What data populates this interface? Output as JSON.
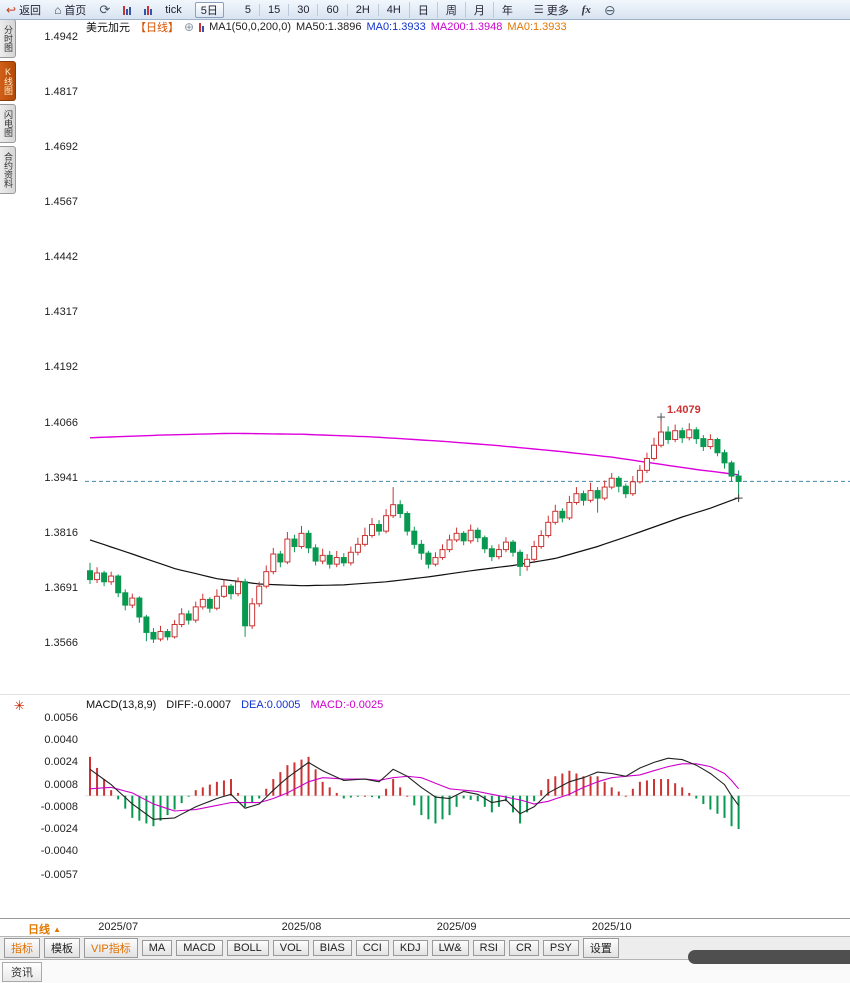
{
  "toolbar": {
    "back_label": "返回",
    "home_label": "首页",
    "tick_label": "tick",
    "five_day_label": "5日",
    "periods": [
      {
        "key": "m5",
        "label": "5"
      },
      {
        "key": "m15",
        "label": "15"
      },
      {
        "key": "m30",
        "label": "30"
      },
      {
        "key": "m60",
        "label": "60"
      },
      {
        "key": "h2",
        "label": "2H"
      },
      {
        "key": "h4",
        "label": "4H"
      },
      {
        "key": "day",
        "label": "日"
      },
      {
        "key": "week",
        "label": "周"
      },
      {
        "key": "month",
        "label": "月"
      },
      {
        "key": "year",
        "label": "年"
      }
    ],
    "more_label": "更多",
    "fx_label": "fx"
  },
  "left_tabs": [
    {
      "key": "time-chart",
      "label": "分时图",
      "active": false
    },
    {
      "key": "kline-chart",
      "label": "K线图",
      "active": true
    },
    {
      "key": "lightning-chart",
      "label": "闪电图",
      "active": false
    },
    {
      "key": "contract-info",
      "label": "合约资料",
      "active": false
    }
  ],
  "legend": {
    "symbol": "美元加元",
    "period_tag": "【日线】",
    "ma_params": "MA1(50,0,200,0)",
    "ma50": "MA50:1.3896",
    "ma0_blue": "MA0:1.3933",
    "ma200": "MA200:1.3948",
    "ma0_orange": "MA0:1.3933"
  },
  "macd_header": {
    "title": "MACD(13,8,9)",
    "diff": "DIFF:-0.0007",
    "dea": "DEA:0.0005",
    "macd": "MACD:-0.0025"
  },
  "xaxis": {
    "period_label": "日线",
    "period_arrow": "▲"
  },
  "indicator_bar": [
    {
      "key": "indicators",
      "label": "指标",
      "accent": true
    },
    {
      "key": "templates",
      "label": "模板",
      "accent": false
    },
    {
      "key": "vip-indicators",
      "label": "VIP指标",
      "accent": true
    },
    {
      "key": "ma",
      "label": "MA",
      "accent": false
    },
    {
      "key": "macd",
      "label": "MACD",
      "accent": false
    },
    {
      "key": "boll",
      "label": "BOLL",
      "accent": false
    },
    {
      "key": "vol",
      "label": "VOL",
      "accent": false
    },
    {
      "key": "bias",
      "label": "BIAS",
      "accent": false
    },
    {
      "key": "cci",
      "label": "CCI",
      "accent": false
    },
    {
      "key": "kdj",
      "label": "KDJ",
      "accent": false
    },
    {
      "key": "lwr",
      "label": "LW&",
      "accent": false
    },
    {
      "key": "rsi",
      "label": "RSI",
      "accent": false
    },
    {
      "key": "cr",
      "label": "CR",
      "accent": false
    },
    {
      "key": "psy",
      "label": "PSY",
      "accent": false
    },
    {
      "key": "settings",
      "label": "设置",
      "accent": false
    }
  ],
  "bottom_tab": "资讯",
  "colors": {
    "up": "#cc3333",
    "down": "#089950",
    "ma200": "#dd00dd",
    "ma50": "#111111",
    "dashed": "#4488aa",
    "diff_line": "#222222",
    "dea_line": "#cc00cc",
    "accent_orange": "#e07800"
  },
  "chart_data": {
    "type": "candlestick",
    "title": "美元加元 日线 USD/CAD Daily with MA(50,200) and MACD(13,8,9)",
    "main": {
      "yticks": [
        1.4942,
        1.4817,
        1.4692,
        1.4567,
        1.4442,
        1.4317,
        1.4192,
        1.4066,
        1.3941,
        1.3816,
        1.3691,
        1.3566
      ],
      "xticks": [
        {
          "index": 4,
          "label": "2025/07"
        },
        {
          "index": 30,
          "label": "2025/08"
        },
        {
          "index": 52,
          "label": "2025/09"
        },
        {
          "index": 74,
          "label": "2025/10"
        }
      ],
      "last_price": 1.3933,
      "high_annotation": {
        "index": 81,
        "price": 1.4079,
        "label": "1.4079"
      },
      "last_marker_price": 1.3895,
      "candles": [
        [
          1.373,
          1.3748,
          1.37,
          1.371
        ],
        [
          1.371,
          1.3738,
          1.3702,
          1.3725
        ],
        [
          1.3725,
          1.373,
          1.3695,
          1.3705
        ],
        [
          1.3705,
          1.3728,
          1.3698,
          1.3718
        ],
        [
          1.3718,
          1.3722,
          1.367,
          1.368
        ],
        [
          1.368,
          1.3688,
          1.364,
          1.3652
        ],
        [
          1.3652,
          1.3678,
          1.3645,
          1.3668
        ],
        [
          1.3668,
          1.3672,
          1.3612,
          1.3625
        ],
        [
          1.3625,
          1.363,
          1.357,
          1.359
        ],
        [
          1.359,
          1.36,
          1.3566,
          1.3575
        ],
        [
          1.3575,
          1.3605,
          1.357,
          1.3592
        ],
        [
          1.3592,
          1.3598,
          1.3572,
          1.358
        ],
        [
          1.358,
          1.3618,
          1.3576,
          1.3608
        ],
        [
          1.3608,
          1.3645,
          1.3602,
          1.3632
        ],
        [
          1.3632,
          1.364,
          1.3608,
          1.3618
        ],
        [
          1.3618,
          1.366,
          1.3612,
          1.3648
        ],
        [
          1.3648,
          1.3678,
          1.3642,
          1.3665
        ],
        [
          1.3665,
          1.367,
          1.3635,
          1.3645
        ],
        [
          1.3645,
          1.3688,
          1.364,
          1.3672
        ],
        [
          1.3672,
          1.371,
          1.3668,
          1.3695
        ],
        [
          1.3695,
          1.37,
          1.3665,
          1.3678
        ],
        [
          1.3678,
          1.3715,
          1.3672,
          1.3705
        ],
        [
          1.3705,
          1.3712,
          1.358,
          1.3605
        ],
        [
          1.3605,
          1.3668,
          1.3598,
          1.3655
        ],
        [
          1.3655,
          1.3705,
          1.3648,
          1.3695
        ],
        [
          1.3695,
          1.3742,
          1.369,
          1.3728
        ],
        [
          1.3728,
          1.3782,
          1.3722,
          1.3768
        ],
        [
          1.3768,
          1.3775,
          1.3738,
          1.375
        ],
        [
          1.375,
          1.3818,
          1.3745,
          1.3802
        ],
        [
          1.3802,
          1.3812,
          1.3772,
          1.3785
        ],
        [
          1.3785,
          1.3832,
          1.378,
          1.3815
        ],
        [
          1.3815,
          1.3822,
          1.377,
          1.3782
        ],
        [
          1.3782,
          1.379,
          1.3742,
          1.3752
        ],
        [
          1.3752,
          1.378,
          1.3745,
          1.3765
        ],
        [
          1.3765,
          1.3775,
          1.3735,
          1.3745
        ],
        [
          1.3745,
          1.3775,
          1.3738,
          1.376
        ],
        [
          1.376,
          1.377,
          1.374,
          1.3748
        ],
        [
          1.3748,
          1.3785,
          1.3742,
          1.3772
        ],
        [
          1.3772,
          1.3805,
          1.3765,
          1.379
        ],
        [
          1.379,
          1.3828,
          1.3785,
          1.381
        ],
        [
          1.381,
          1.385,
          1.3805,
          1.3835
        ],
        [
          1.3835,
          1.3845,
          1.381,
          1.382
        ],
        [
          1.382,
          1.387,
          1.3815,
          1.3855
        ],
        [
          1.3855,
          1.392,
          1.385,
          1.388
        ],
        [
          1.388,
          1.389,
          1.385,
          1.386
        ],
        [
          1.386,
          1.3865,
          1.381,
          1.382
        ],
        [
          1.382,
          1.383,
          1.378,
          1.379
        ],
        [
          1.379,
          1.38,
          1.3755,
          1.377
        ],
        [
          1.377,
          1.3775,
          1.3735,
          1.3745
        ],
        [
          1.3745,
          1.3772,
          1.374,
          1.376
        ],
        [
          1.376,
          1.379,
          1.3755,
          1.3778
        ],
        [
          1.3778,
          1.3812,
          1.3772,
          1.38
        ],
        [
          1.38,
          1.3828,
          1.3795,
          1.3815
        ],
        [
          1.3815,
          1.382,
          1.3788,
          1.3798
        ],
        [
          1.3798,
          1.3835,
          1.3792,
          1.3822
        ],
        [
          1.3822,
          1.3828,
          1.3795,
          1.3805
        ],
        [
          1.3805,
          1.381,
          1.377,
          1.378
        ],
        [
          1.378,
          1.3788,
          1.3752,
          1.3762
        ],
        [
          1.3762,
          1.379,
          1.3756,
          1.3778
        ],
        [
          1.3778,
          1.3806,
          1.3772,
          1.3795
        ],
        [
          1.3795,
          1.38,
          1.3762,
          1.3772
        ],
        [
          1.3772,
          1.3778,
          1.3718,
          1.374
        ],
        [
          1.374,
          1.3768,
          1.373,
          1.3756
        ],
        [
          1.3756,
          1.3798,
          1.375,
          1.3785
        ],
        [
          1.3785,
          1.3822,
          1.378,
          1.381
        ],
        [
          1.381,
          1.3855,
          1.3805,
          1.384
        ],
        [
          1.384,
          1.388,
          1.3835,
          1.3865
        ],
        [
          1.3865,
          1.3872,
          1.384,
          1.385
        ],
        [
          1.385,
          1.39,
          1.3845,
          1.3885
        ],
        [
          1.3885,
          1.392,
          1.388,
          1.3905
        ],
        [
          1.3905,
          1.3912,
          1.3878,
          1.389
        ],
        [
          1.389,
          1.393,
          1.3885,
          1.3912
        ],
        [
          1.3912,
          1.392,
          1.3862,
          1.3895
        ],
        [
          1.3895,
          1.3935,
          1.389,
          1.392
        ],
        [
          1.392,
          1.3952,
          1.3915,
          1.394
        ],
        [
          1.394,
          1.3945,
          1.3908,
          1.3922
        ],
        [
          1.3922,
          1.3928,
          1.3895,
          1.3905
        ],
        [
          1.3905,
          1.3945,
          1.39,
          1.3932
        ],
        [
          1.3932,
          1.397,
          1.3928,
          1.3958
        ],
        [
          1.3958,
          1.3998,
          1.3952,
          1.3985
        ],
        [
          1.3985,
          1.4032,
          1.398,
          1.4015
        ],
        [
          1.4015,
          1.4079,
          1.401,
          1.4045
        ],
        [
          1.4045,
          1.4058,
          1.4018,
          1.4028
        ],
        [
          1.4028,
          1.4062,
          1.4022,
          1.4048
        ],
        [
          1.4048,
          1.4055,
          1.402,
          1.4032
        ],
        [
          1.4032,
          1.4065,
          1.4026,
          1.405
        ],
        [
          1.405,
          1.4056,
          1.4018,
          1.403
        ],
        [
          1.403,
          1.4038,
          1.4002,
          1.4012
        ],
        [
          1.4012,
          1.404,
          1.4006,
          1.4028
        ],
        [
          1.4028,
          1.4032,
          1.399,
          1.3998
        ],
        [
          1.3998,
          1.4005,
          1.3962,
          1.3975
        ],
        [
          1.3975,
          1.398,
          1.3932,
          1.3945
        ],
        [
          1.3945,
          1.3958,
          1.389,
          1.3933
        ]
      ],
      "ma50_points": [
        [
          0,
          1.38
        ],
        [
          6,
          1.3768
        ],
        [
          12,
          1.3735
        ],
        [
          18,
          1.3712
        ],
        [
          24,
          1.37
        ],
        [
          30,
          1.3696
        ],
        [
          36,
          1.3698
        ],
        [
          42,
          1.3705
        ],
        [
          48,
          1.3716
        ],
        [
          54,
          1.373
        ],
        [
          60,
          1.3742
        ],
        [
          66,
          1.3758
        ],
        [
          72,
          1.3785
        ],
        [
          78,
          1.3818
        ],
        [
          84,
          1.3852
        ],
        [
          88,
          1.3872
        ],
        [
          92,
          1.3896
        ]
      ],
      "ma200_points": [
        [
          0,
          1.4032
        ],
        [
          10,
          1.4038
        ],
        [
          20,
          1.4042
        ],
        [
          30,
          1.404
        ],
        [
          40,
          1.4034
        ],
        [
          50,
          1.4024
        ],
        [
          58,
          1.4014
        ],
        [
          66,
          1.4002
        ],
        [
          74,
          1.3988
        ],
        [
          80,
          1.3974
        ],
        [
          86,
          1.396
        ],
        [
          92,
          1.3948
        ]
      ]
    },
    "macd": {
      "params": [
        13,
        8,
        9
      ],
      "yticks": [
        0.0056,
        0.004,
        0.0024,
        0.0008,
        -0.0008,
        -0.0024,
        -0.004,
        -0.0057
      ],
      "diff_points": [
        [
          0,
          0.0019
        ],
        [
          3,
          0.0008
        ],
        [
          6,
          -0.0006
        ],
        [
          9,
          -0.0017
        ],
        [
          12,
          -0.0016
        ],
        [
          15,
          -0.0008
        ],
        [
          18,
          -0.0002
        ],
        [
          20,
          0.0001
        ],
        [
          22,
          -0.0009
        ],
        [
          24,
          -0.0006
        ],
        [
          26,
          0.0004
        ],
        [
          28,
          0.0013
        ],
        [
          31,
          0.0024
        ],
        [
          33,
          0.0018
        ],
        [
          36,
          0.0011
        ],
        [
          39,
          0.0012
        ],
        [
          41,
          0.001
        ],
        [
          43,
          0.0019
        ],
        [
          45,
          0.0014
        ],
        [
          47,
          0.0006
        ],
        [
          49,
          -0.0001
        ],
        [
          51,
          -0.0002
        ],
        [
          53,
          0.0003
        ],
        [
          55,
          0.0001
        ],
        [
          57,
          -0.0005
        ],
        [
          59,
          -0.0003
        ],
        [
          61,
          -0.0013
        ],
        [
          63,
          -0.0008
        ],
        [
          65,
          0.0002
        ],
        [
          68,
          0.001
        ],
        [
          70,
          0.0013
        ],
        [
          72,
          0.0017
        ],
        [
          74,
          0.0016
        ],
        [
          76,
          0.0014
        ],
        [
          78,
          0.002
        ],
        [
          80,
          0.0024
        ],
        [
          82,
          0.0027
        ],
        [
          84,
          0.0026
        ],
        [
          86,
          0.0022
        ],
        [
          88,
          0.0016
        ],
        [
          90,
          0.0008
        ],
        [
          91,
          0.0
        ],
        [
          92,
          -0.0007
        ]
      ],
      "dea_points": [
        [
          0,
          0.0005
        ],
        [
          3,
          0.0006
        ],
        [
          6,
          0.0002
        ],
        [
          9,
          -0.0006
        ],
        [
          12,
          -0.0011
        ],
        [
          15,
          -0.001
        ],
        [
          18,
          -0.0007
        ],
        [
          20,
          -0.0005
        ],
        [
          22,
          -0.0005
        ],
        [
          24,
          -0.0005
        ],
        [
          26,
          -0.0002
        ],
        [
          28,
          0.0002
        ],
        [
          31,
          0.001
        ],
        [
          33,
          0.0013
        ],
        [
          36,
          0.0012
        ],
        [
          39,
          0.0012
        ],
        [
          41,
          0.0011
        ],
        [
          43,
          0.0013
        ],
        [
          45,
          0.0014
        ],
        [
          47,
          0.0013
        ],
        [
          49,
          0.0009
        ],
        [
          51,
          0.0005
        ],
        [
          53,
          0.0004
        ],
        [
          55,
          0.0003
        ],
        [
          57,
          0.0001
        ],
        [
          59,
          -0.0001
        ],
        [
          61,
          -0.0003
        ],
        [
          63,
          -0.0006
        ],
        [
          65,
          -0.0004
        ],
        [
          68,
          0.0001
        ],
        [
          70,
          0.0006
        ],
        [
          72,
          0.001
        ],
        [
          74,
          0.0013
        ],
        [
          76,
          0.0014
        ],
        [
          78,
          0.0015
        ],
        [
          80,
          0.0018
        ],
        [
          82,
          0.0021
        ],
        [
          84,
          0.0023
        ],
        [
          86,
          0.0023
        ],
        [
          88,
          0.0021
        ],
        [
          90,
          0.0016
        ],
        [
          91,
          0.0011
        ],
        [
          92,
          0.0005
        ]
      ]
    }
  }
}
